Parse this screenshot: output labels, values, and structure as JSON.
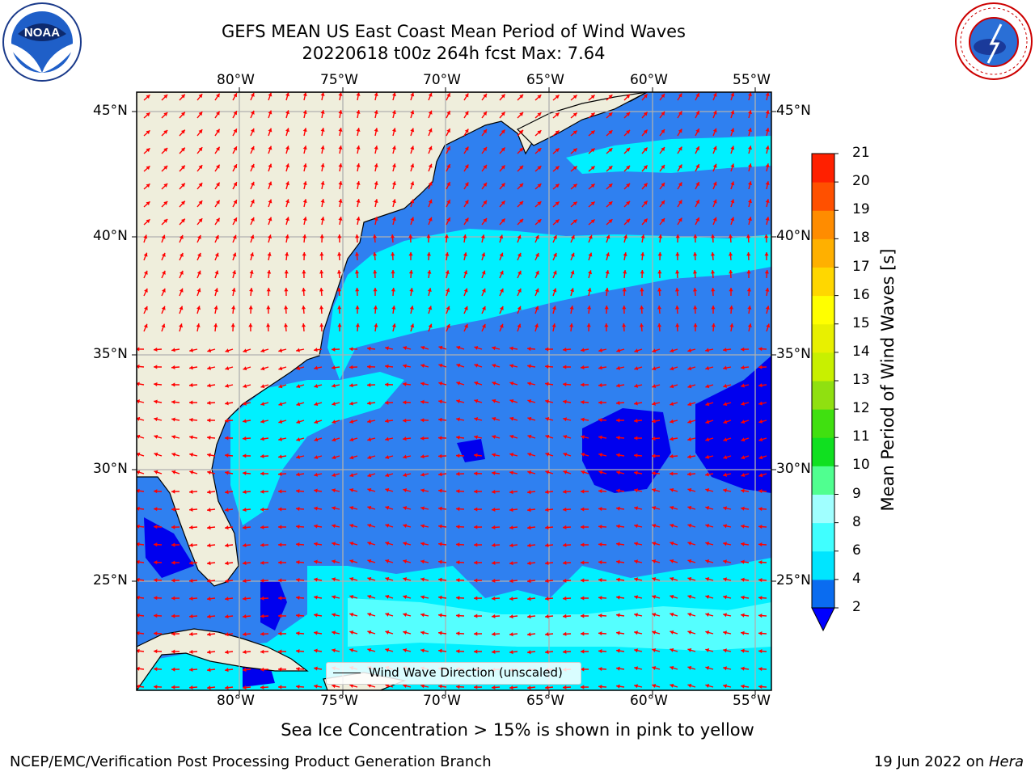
{
  "title_line1": "GEFS MEAN US East Coast Mean Period of Wind Waves",
  "title_line2": "20220618 t00z 264h fcst   Max: 7.64",
  "lon_ticks": [
    "80°W",
    "75°W",
    "70°W",
    "65°W",
    "60°W",
    "55°W"
  ],
  "lat_ticks": [
    "45°N",
    "40°N",
    "35°N",
    "30°N",
    "25°N"
  ],
  "colorbar": {
    "label": "Mean Period of Wind Waves [s]",
    "ticks": [
      "2",
      "4",
      "6",
      "8",
      "9",
      "10",
      "11",
      "12",
      "13",
      "14",
      "15",
      "16",
      "17",
      "18",
      "19",
      "20",
      "21"
    ],
    "colors": [
      "#0a6cf0",
      "#00e5ff",
      "#40ffff",
      "#a0ffff",
      "#50ff90",
      "#10e020",
      "#40e010",
      "#90e010",
      "#c8f000",
      "#e8f000",
      "#ffff00",
      "#ffd700",
      "#ffb000",
      "#ff8c00",
      "#ff5000",
      "#ff2000"
    ],
    "under_color": "#0000ff"
  },
  "legend_label": "Wind Wave Direction (unscaled)",
  "caption": "Sea Ice Concentration > 15% is shown in pink to yellow",
  "footer_left": "NCEP/EMC/Verification Post Processing Product Generation Branch",
  "footer_right_date": "19 Jun 2022 on ",
  "footer_right_host": "Hera",
  "logos": {
    "left": "NOAA",
    "right": "NATIONAL WEATHER SERVICE"
  },
  "map_colors": {
    "land": "#efeedc",
    "ocean_2_4": "#2f80f0",
    "ocean_4_6": "#00f0ff",
    "ocean_6_8": "#55ffff",
    "ocean_lt2": "#0000ee",
    "arrows": "#ff0000",
    "grid": "#b0b0b0"
  }
}
